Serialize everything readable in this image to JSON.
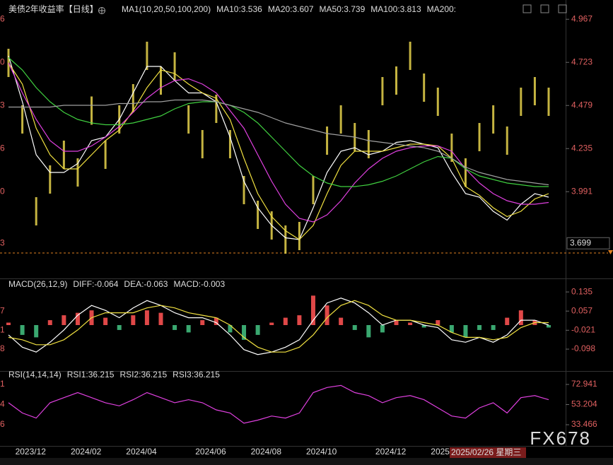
{
  "chart_data": [
    {
      "type": "line",
      "title": "美债2年收益率",
      "period": "【日线】",
      "indicator": "MA1(10,20,50,100,200)",
      "categories": [
        null,
        "2023/12",
        null,
        null,
        null,
        "2024/02",
        null,
        null,
        null,
        "2024/04",
        null,
        null,
        null,
        null,
        "2024/06",
        null,
        null,
        null,
        "2024/08",
        null,
        null,
        null,
        "2024/10",
        null,
        null,
        null,
        null,
        "2024/12",
        null,
        null,
        null,
        "2025",
        null,
        null,
        null,
        null,
        null,
        null,
        null,
        null
      ],
      "price": {
        "color": "#e8d44d",
        "values": [
          4.72,
          4.4,
          3.88,
          4.06,
          4.2,
          4.1,
          4.45,
          4.2,
          4.4,
          4.52,
          4.76,
          4.62,
          4.7,
          4.4,
          4.26,
          4.46,
          4.26,
          4.0,
          3.86,
          3.8,
          3.72,
          3.74,
          4.0,
          4.28,
          4.4,
          4.3,
          4.26,
          4.56,
          4.62,
          4.76,
          4.58,
          4.5,
          4.24,
          4.1,
          4.3,
          4.4,
          4.28,
          4.5,
          4.56,
          4.5
        ]
      },
      "series": [
        {
          "name": "MA10:3.536",
          "color": "#ffffff",
          "values": [
            4.76,
            4.5,
            4.2,
            4.1,
            4.1,
            4.15,
            4.28,
            4.3,
            4.4,
            4.55,
            4.7,
            4.7,
            4.62,
            4.55,
            4.55,
            4.5,
            4.3,
            4.05,
            3.9,
            3.8,
            3.73,
            3.72,
            3.9,
            4.1,
            4.22,
            4.24,
            4.2,
            4.22,
            4.27,
            4.28,
            4.26,
            4.24,
            4.1,
            3.98,
            3.96,
            3.88,
            3.83,
            3.92,
            3.98,
            3.96
          ]
        },
        {
          "name": "MA20:3.607",
          "color": "#f0e040",
          "values": [
            4.72,
            4.6,
            4.35,
            4.2,
            4.12,
            4.12,
            4.2,
            4.28,
            4.34,
            4.45,
            4.58,
            4.68,
            4.66,
            4.6,
            4.55,
            4.52,
            4.4,
            4.18,
            3.98,
            3.85,
            3.77,
            3.72,
            3.8,
            3.98,
            4.14,
            4.22,
            4.22,
            4.22,
            4.24,
            4.26,
            4.26,
            4.25,
            4.18,
            4.02,
            3.97,
            3.9,
            3.85,
            3.88,
            3.95,
            3.98
          ]
        },
        {
          "name": "MA50:3.739",
          "color": "#e040e0",
          "values": [
            4.72,
            4.55,
            4.4,
            4.28,
            4.22,
            4.22,
            4.25,
            4.3,
            4.36,
            4.44,
            4.52,
            4.58,
            4.62,
            4.63,
            4.6,
            4.55,
            4.45,
            4.35,
            4.2,
            4.05,
            3.92,
            3.84,
            3.82,
            3.86,
            3.94,
            4.04,
            4.12,
            4.18,
            4.22,
            4.24,
            4.25,
            4.25,
            4.22,
            4.12,
            4.04,
            3.98,
            3.94,
            3.92,
            3.92,
            3.93
          ]
        },
        {
          "name": "MA100:3.813",
          "color": "#40d040",
          "values": [
            4.75,
            4.68,
            4.58,
            4.5,
            4.44,
            4.4,
            4.38,
            4.37,
            4.37,
            4.38,
            4.4,
            4.42,
            4.46,
            4.49,
            4.5,
            4.5,
            4.48,
            4.44,
            4.38,
            4.3,
            4.22,
            4.14,
            4.08,
            4.04,
            4.02,
            4.02,
            4.03,
            4.05,
            4.08,
            4.12,
            4.16,
            4.19,
            4.18,
            4.12,
            4.08,
            4.06,
            4.04,
            4.03,
            4.02,
            4.02
          ]
        },
        {
          "name": "MA200:",
          "color": "#a0a0a0",
          "values": [
            4.47,
            4.47,
            4.47,
            4.47,
            4.48,
            4.48,
            4.48,
            4.48,
            4.49,
            4.49,
            4.5,
            4.5,
            4.51,
            4.51,
            4.51,
            4.5,
            4.48,
            4.46,
            4.44,
            4.41,
            4.38,
            4.36,
            4.34,
            4.32,
            4.31,
            4.3,
            4.28,
            4.27,
            4.26,
            4.25,
            4.24,
            4.22,
            4.18,
            4.13,
            4.1,
            4.08,
            4.06,
            4.05,
            4.04,
            4.03
          ]
        }
      ],
      "ylim": [
        3.5,
        5.0
      ],
      "yticks": [
        4.967,
        4.723,
        4.479,
        4.235,
        3.991
      ],
      "last_price": 3.699,
      "reference_line": 3.644,
      "left_labels": [
        "6",
        "0",
        "3",
        "6",
        "0",
        "3"
      ]
    },
    {
      "type": "macd",
      "indicator": "MACD(26,12,9)",
      "series": [
        {
          "name": "DIFF:-0.064",
          "color": "#ffffff",
          "values": [
            -0.04,
            -0.09,
            -0.11,
            -0.07,
            -0.02,
            0.04,
            0.08,
            0.06,
            0.03,
            0.07,
            0.1,
            0.08,
            0.05,
            0.03,
            0.03,
            0.01,
            -0.04,
            -0.1,
            -0.12,
            -0.11,
            -0.09,
            -0.06,
            0.02,
            0.09,
            0.11,
            0.09,
            0.05,
            0.0,
            0.02,
            0.02,
            0.0,
            -0.01,
            -0.06,
            -0.07,
            -0.05,
            -0.07,
            -0.04,
            0.02,
            0.02,
            0.0
          ]
        },
        {
          "name": "DEA:-0.063",
          "color": "#f0e040",
          "values": [
            -0.05,
            -0.06,
            -0.08,
            -0.08,
            -0.06,
            -0.02,
            0.03,
            0.05,
            0.05,
            0.05,
            0.07,
            0.08,
            0.07,
            0.05,
            0.04,
            0.03,
            0.0,
            -0.05,
            -0.09,
            -0.11,
            -0.11,
            -0.09,
            -0.04,
            0.03,
            0.08,
            0.1,
            0.08,
            0.04,
            0.02,
            0.02,
            0.01,
            0.0,
            -0.03,
            -0.05,
            -0.05,
            -0.06,
            -0.05,
            -0.01,
            0.01,
            0.01
          ]
        }
      ],
      "histogram": {
        "name": "MACD:-0.003",
        "color": "#e040e0",
        "up_color": "#e04848",
        "down_color": "#3aa870",
        "values": [
          0.01,
          -0.04,
          -0.05,
          0.02,
          0.04,
          0.05,
          0.06,
          0.03,
          -0.02,
          0.04,
          0.06,
          0.05,
          -0.02,
          -0.03,
          0.02,
          0.03,
          -0.03,
          -0.06,
          -0.04,
          0.01,
          0.03,
          0.04,
          0.12,
          0.08,
          0.03,
          -0.02,
          -0.05,
          -0.03,
          0.02,
          0.01,
          -0.01,
          0.02,
          -0.03,
          -0.05,
          -0.02,
          -0.02,
          0.03,
          0.06,
          0.02,
          -0.01
        ]
      },
      "ylim": [
        -0.19,
        0.19
      ],
      "yticks": [
        0.135,
        0.057,
        -0.021,
        -0.098
      ],
      "left_labels": [
        "7",
        "1",
        "8"
      ]
    },
    {
      "type": "line",
      "indicator": "RSI(14,14,14)",
      "series": [
        {
          "name": "RSI1:36.215",
          "color": "#ffffff"
        },
        {
          "name": "RSI2:36.215",
          "color": "#f0e040"
        },
        {
          "name": "RSI3:36.215",
          "color": "#e040e0",
          "values": [
            55,
            45,
            40,
            55,
            60,
            65,
            60,
            55,
            52,
            58,
            65,
            60,
            55,
            58,
            55,
            48,
            45,
            35,
            38,
            42,
            40,
            45,
            65,
            70,
            72,
            65,
            62,
            55,
            60,
            62,
            58,
            50,
            42,
            40,
            50,
            55,
            45,
            60,
            62,
            58
          ]
        }
      ],
      "ylim": [
        13.4,
        86.1
      ],
      "yticks": [
        72.941,
        53.204,
        33.466
      ],
      "left_labels": [
        "1",
        "4",
        "6"
      ]
    }
  ],
  "footer": {
    "cursor_label": "2025/02/26 星期三",
    "watermark": "FX678"
  }
}
